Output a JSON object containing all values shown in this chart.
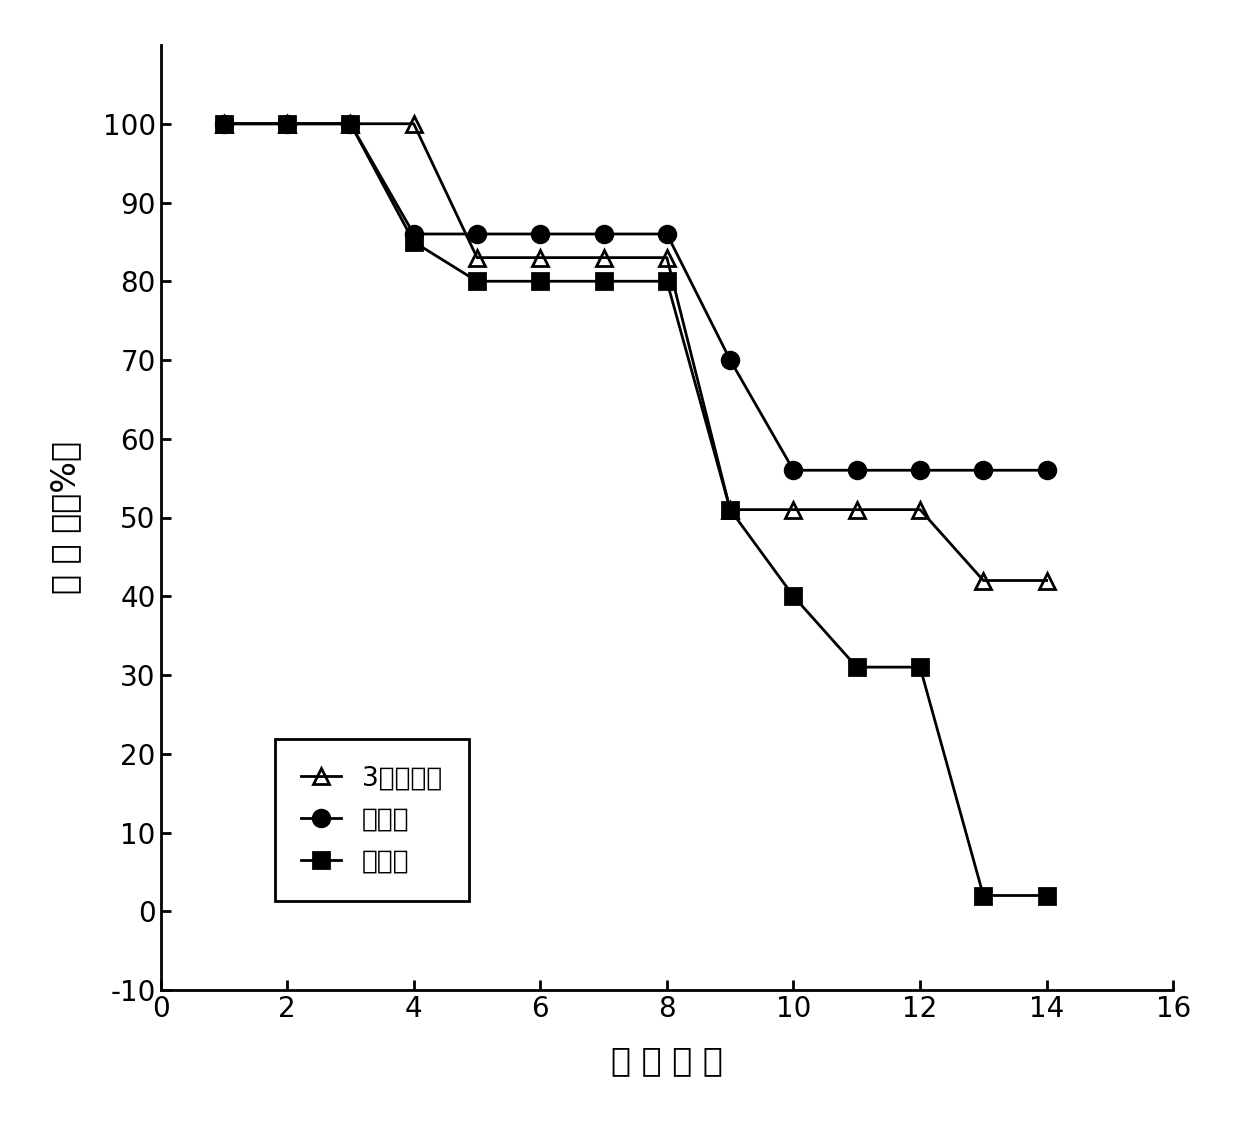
{
  "series": [
    {
      "label": "3号化合物",
      "x": [
        1,
        2,
        3,
        4,
        5,
        6,
        7,
        8,
        9,
        10,
        11,
        12,
        13,
        14
      ],
      "y": [
        100,
        100,
        100,
        100,
        83,
        83,
        83,
        83,
        51,
        51,
        51,
        51,
        42,
        42
      ],
      "marker": "^",
      "filled": false,
      "color": "#000000",
      "linestyle": "-",
      "markersize": 12
    },
    {
      "label": "锐康唆",
      "x": [
        1,
        2,
        3,
        4,
        5,
        6,
        7,
        8,
        9,
        10,
        11,
        12,
        13,
        14
      ],
      "y": [
        100,
        100,
        100,
        86,
        86,
        86,
        86,
        86,
        70,
        56,
        56,
        56,
        56,
        56
      ],
      "marker": "o",
      "filled": true,
      "color": "#000000",
      "linestyle": "-",
      "markersize": 12
    },
    {
      "label": "控制组",
      "x": [
        1,
        2,
        3,
        4,
        5,
        6,
        7,
        8,
        9,
        10,
        11,
        12,
        13,
        14
      ],
      "y": [
        100,
        100,
        100,
        85,
        80,
        80,
        80,
        80,
        51,
        40,
        31,
        31,
        2,
        2
      ],
      "marker": "s",
      "filled": true,
      "color": "#000000",
      "linestyle": "-",
      "markersize": 12
    }
  ],
  "xlabel": "感 染 天 数",
  "ylabel": "存 活 率（%）",
  "xlim": [
    0,
    16
  ],
  "ylim": [
    -10,
    110
  ],
  "xticks": [
    0,
    2,
    4,
    6,
    8,
    10,
    12,
    14,
    16
  ],
  "yticks": [
    -10,
    0,
    10,
    20,
    30,
    40,
    50,
    60,
    70,
    80,
    90,
    100
  ],
  "background_color": "#ffffff",
  "figure_size": [
    12.35,
    11.25
  ],
  "dpi": 100,
  "spine_linewidth": 2.0,
  "tick_fontsize": 20,
  "label_fontsize": 24,
  "legend_fontsize": 19
}
